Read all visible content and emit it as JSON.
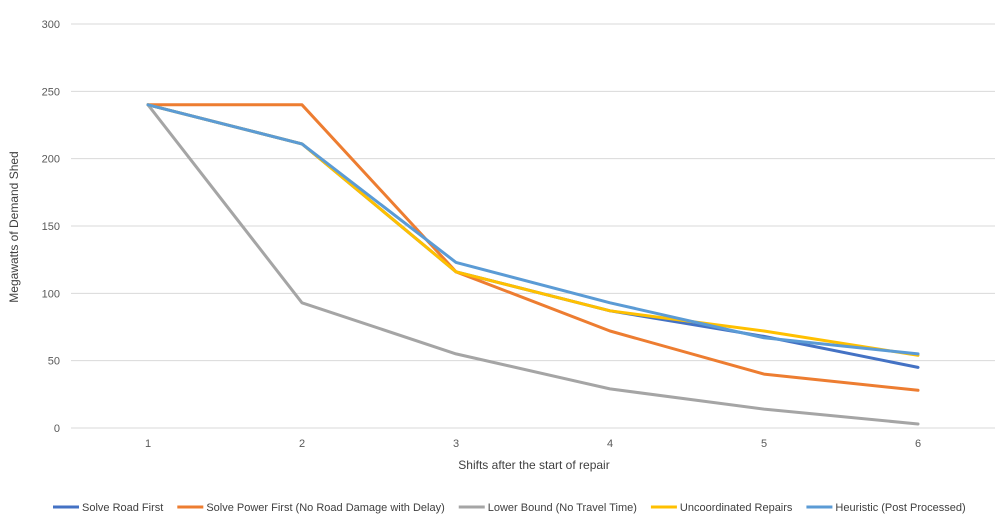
{
  "chart_data": {
    "type": "line",
    "title": "",
    "xlabel": "Shifts after the start of repair",
    "ylabel": "Megawatts of Demand Shed",
    "x": [
      1,
      2,
      3,
      4,
      5,
      6
    ],
    "ylim": [
      0,
      300
    ],
    "yticks": [
      0,
      50,
      100,
      150,
      200,
      250,
      300
    ],
    "grid": true,
    "legend_position": "bottom",
    "series": [
      {
        "name": "Solve Road First",
        "color": "#4472C4",
        "values": [
          240,
          211,
          116,
          87,
          68,
          45
        ]
      },
      {
        "name": "Solve Power First (No Road Damage with Delay)",
        "color": "#ED7D31",
        "values": [
          240,
          240,
          116,
          72,
          40,
          28
        ]
      },
      {
        "name": "Lower Bound (No Travel Time)",
        "color": "#A5A5A5",
        "values": [
          240,
          93,
          55,
          29,
          14,
          3
        ]
      },
      {
        "name": "Uncoordinated Repairs",
        "color": "#FFC000",
        "values": [
          240,
          211,
          116,
          87,
          72,
          54
        ]
      },
      {
        "name": "Heuristic (Post Processed)",
        "color": "#5B9BD5",
        "values": [
          240,
          211,
          123,
          93,
          67,
          55
        ]
      }
    ]
  }
}
